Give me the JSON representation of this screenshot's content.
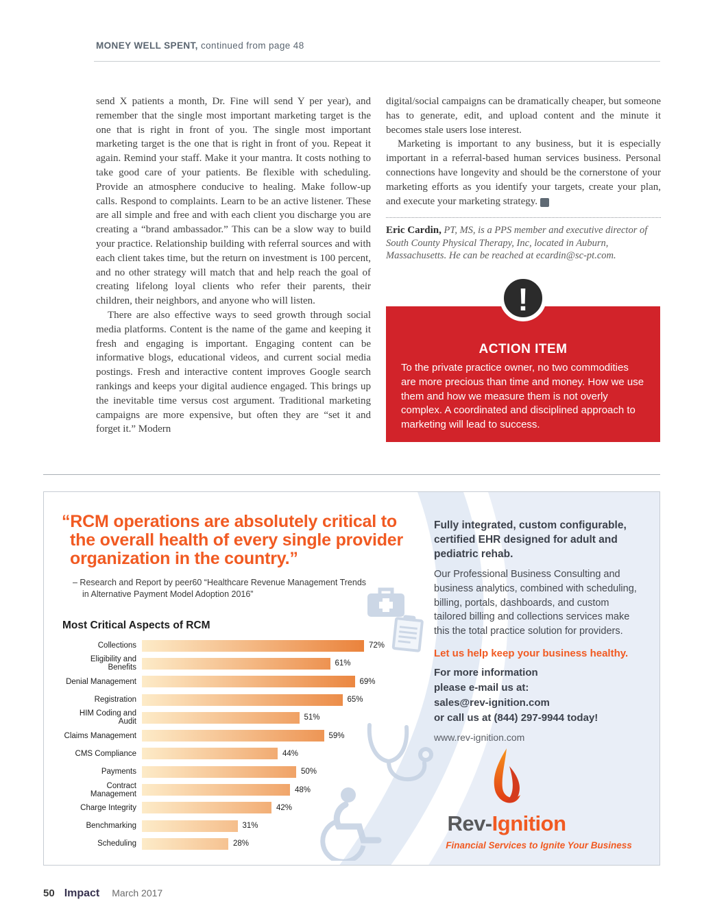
{
  "header": {
    "title": "MONEY WELL SPENT,",
    "subtitle": " continued from page 48"
  },
  "article": {
    "left": {
      "p1": "send X patients a month, Dr. Fine will send Y per year), and remember that the single most important marketing target is the one that is right in front of you. The single most important marketing target is the one that is right in front of you. Repeat it again. Remind your staff. Make it your mantra. It costs nothing to take good care of your patients. Be flexible with scheduling. Provide an atmosphere conducive to healing. Make follow-up calls. Respond to complaints. Learn to be an active listener. These are all simple and free and with each client you discharge you are creating a “brand ambassador.” This can be a slow way to build your practice. Relationship building with referral sources and with each client takes time, but the return on investment is 100 percent, and no other strategy will match that and help reach the goal of creating lifelong loyal clients who refer their parents, their children, their neighbors, and anyone who will listen.",
      "p2": "There are also effective ways to seed growth through social media platforms. Content is the name of the game and keeping it fresh and engaging is important. Engaging content can be informative blogs, educational videos, and current social media postings. Fresh and interactive content improves Google search rankings and keeps your digital audience engaged. This brings up the inevitable time versus cost argument. Traditional marketing campaigns are more expensive, but often they are “set it and forget it.” Modern"
    },
    "right": {
      "p1": "digital/social campaigns can be dramatically cheaper, but someone has to generate, edit, and upload content and the minute it becomes stale users lose interest.",
      "p2": "Marketing is important to any business, but it is especially important in a referral-based human services business. Personal connections have longevity and should be the cornerstone of your marketing efforts as you identify your targets, create your plan, and execute your marketing strategy."
    },
    "bio": {
      "name": "Eric Cardin,",
      "text": " PT, MS, is a PPS member and executive director of South County Physical Therapy, Inc, located in Auburn, Massachusetts. He can be reached at ecardin@sc-pt.com."
    }
  },
  "action_item": {
    "title": "ACTION ITEM",
    "body": "To the private practice owner, no two commodities are more precious than time and money. How we use them and how we measure them is not overly complex. A coordinated and disciplined approach to marketing will lead to success.",
    "bg_color": "#d2232a"
  },
  "ad": {
    "quote": "“RCM operations are absolutely critical to the overall health of every single provider organization in the country.”",
    "attribution": "–  Research and Report by peer60 “Healthcare Revenue Management Trends in Alternative Payment Model Adoption 2016”",
    "headline": "Fully integrated, custom configurable, certified EHR designed for adult and pediatric rehab.",
    "body": "Our Professional Business Consulting and business analytics, combined with scheduling, billing, portals, dashboards, and custom tailored billing and collections services make this the total practice solution for providers.",
    "tagline_orange": "Let us help keep your business healthy.",
    "contact_lines": [
      "For more information",
      "please e-mail us at:",
      "sales@rev-ignition.com",
      "or call us at (844) 297-9944 today!"
    ],
    "website": "www.rev-ignition.com",
    "logo": {
      "prefix": "Rev-",
      "suffix": "Ignition",
      "tagline": "Financial Services to Ignite Your Business"
    },
    "accent_color": "#f15a22"
  },
  "chart_data": {
    "type": "bar",
    "orientation": "horizontal",
    "title": "Most Critical Aspects of RCM",
    "categories": [
      "Collections",
      "Eligibility and Benefits",
      "Denial Management",
      "Registration",
      "HIM Coding and Audit",
      "Claims Management",
      "CMS Compliance",
      "Payments",
      "Contract Management",
      "Charge Integrity",
      "Benchmarking",
      "Scheduling"
    ],
    "values": [
      72,
      61,
      69,
      65,
      51,
      59,
      44,
      50,
      48,
      42,
      31,
      28
    ],
    "unit": "%",
    "xlim": [
      0,
      100
    ],
    "grid": false,
    "bar_gradient": [
      "#FDEBC8",
      "#E35A05"
    ]
  },
  "footer": {
    "page_number": "50",
    "magazine": "Impact",
    "date": "March 2017"
  }
}
